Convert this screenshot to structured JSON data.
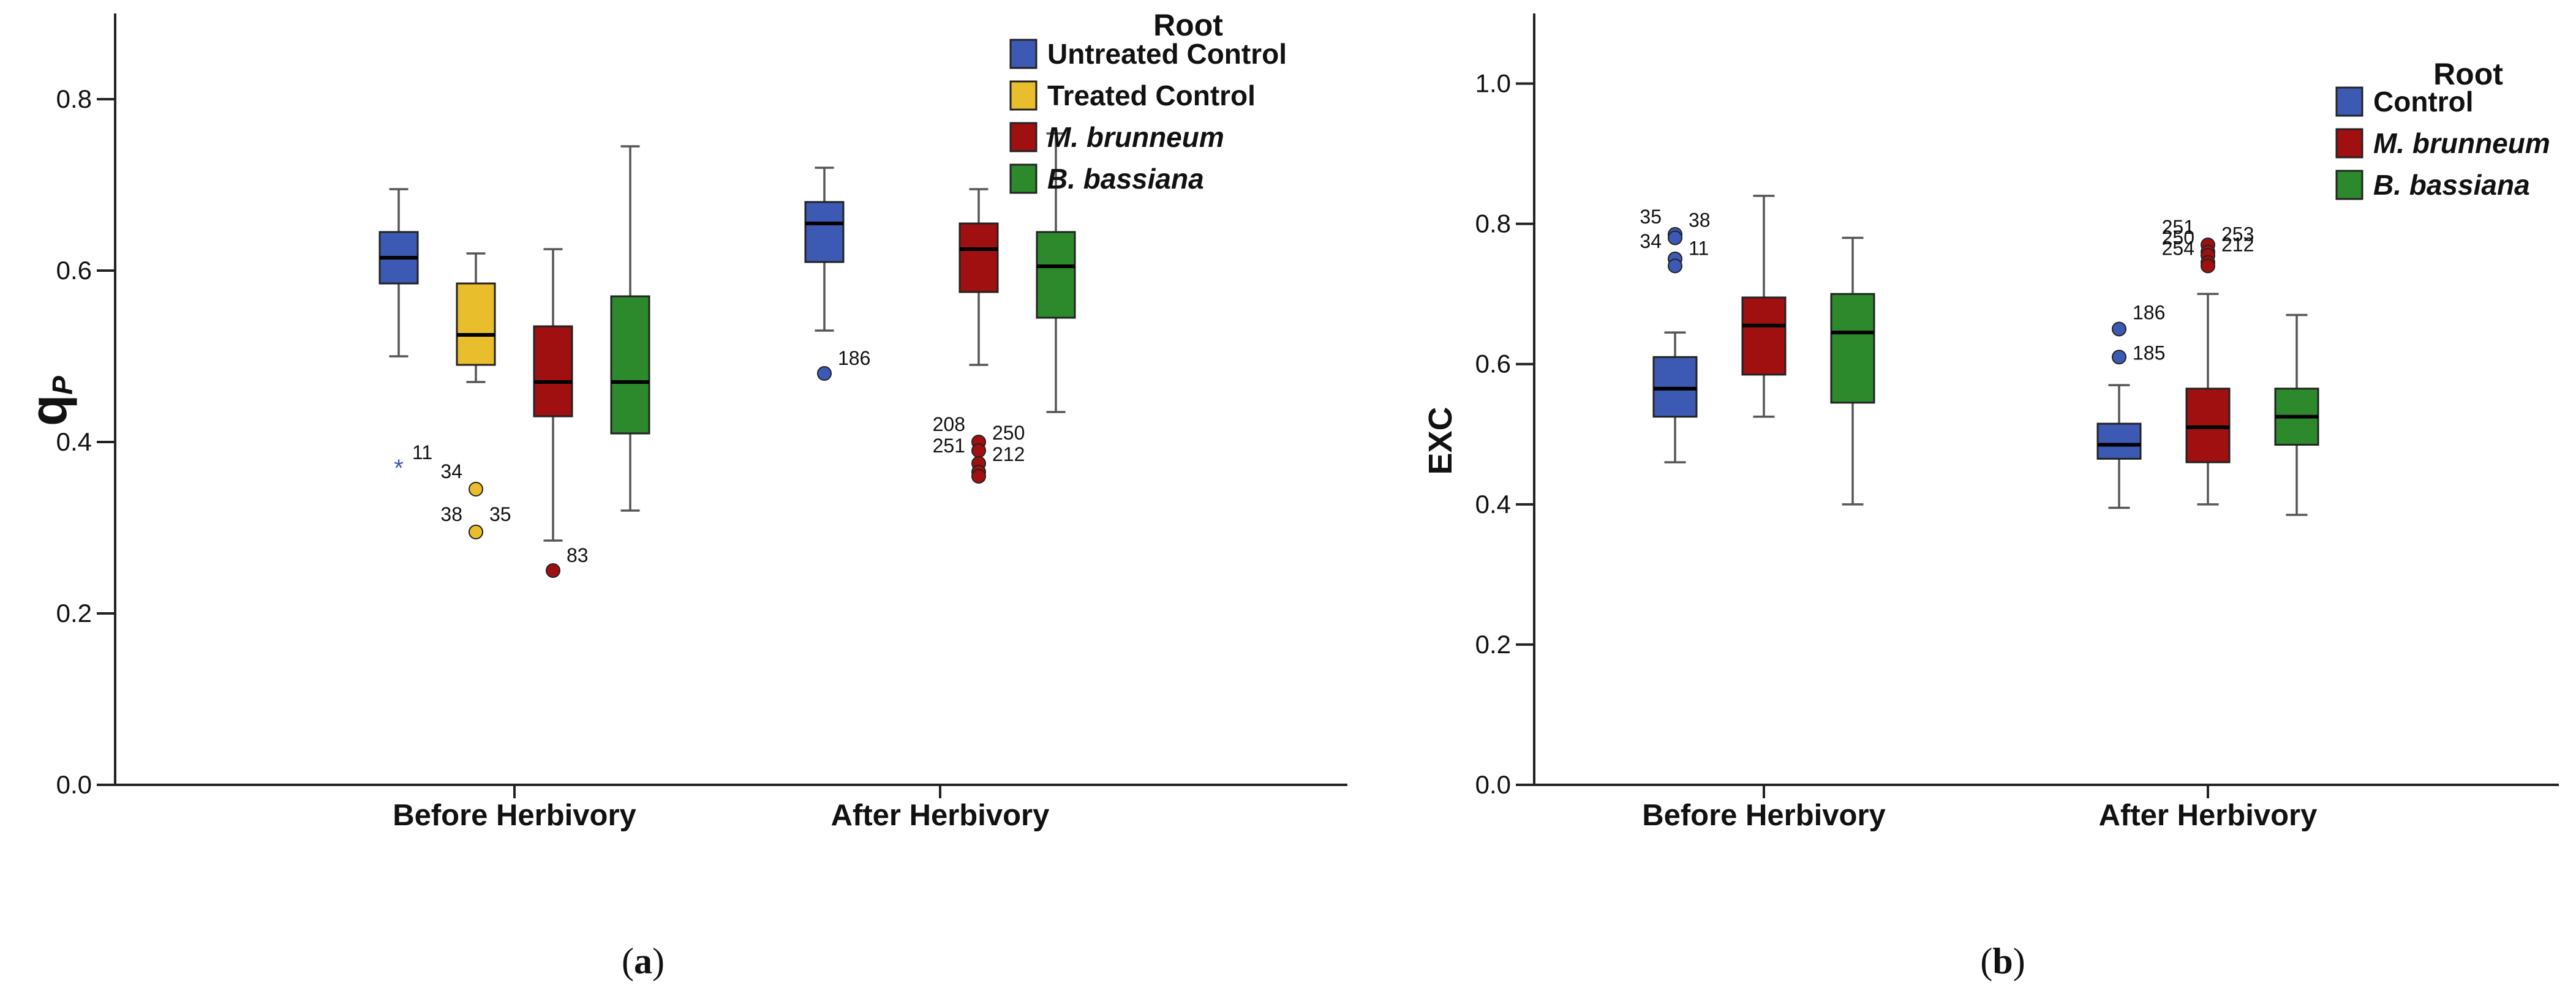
{
  "colors": {
    "untreated_control": "#3c5ab4",
    "treated_control": "#e8be2c",
    "m_brunneum": "#a01010",
    "b_bassiana": "#2c8a2c",
    "axis": "#222222",
    "whisker": "#555555"
  },
  "chart_data": [
    {
      "type": "box",
      "panel_label": "(a)",
      "panel_letter": "a",
      "title": "",
      "xlabel": "",
      "ylabel": "qP",
      "ylabel_main": "q",
      "ylabel_sub": "P",
      "ylim": [
        0,
        0.9
      ],
      "yticks": [
        0.0,
        0.2,
        0.4,
        0.6,
        0.8
      ],
      "ytick_labels": [
        "0.0",
        "0.2",
        "0.4",
        "0.6",
        "0.8"
      ],
      "categories": [
        "Before Herbivory",
        "After Herbivory"
      ],
      "legend_title": "Root",
      "legend_position": "top-right",
      "series": [
        {
          "name": "Untreated Control",
          "italic": false,
          "color_key": "untreated_control",
          "boxes": [
            {
              "category": "Before Herbivory",
              "whisker_low": 0.5,
              "q1": 0.585,
              "median": 0.615,
              "q3": 0.645,
              "whisker_high": 0.695,
              "outliers": [
                {
                  "value": 0.37,
                  "label": "11",
                  "marker": "star"
                }
              ]
            },
            {
              "category": "After Herbivory",
              "whisker_low": 0.53,
              "q1": 0.61,
              "median": 0.655,
              "q3": 0.68,
              "whisker_high": 0.72,
              "outliers": [
                {
                  "value": 0.48,
                  "label": "186",
                  "marker": "circle"
                }
              ]
            }
          ]
        },
        {
          "name": "Treated Control",
          "italic": false,
          "color_key": "treated_control",
          "boxes": [
            {
              "category": "Before Herbivory",
              "whisker_low": 0.47,
              "q1": 0.49,
              "median": 0.525,
              "q3": 0.585,
              "whisker_high": 0.62,
              "outliers": [
                {
                  "value": 0.345,
                  "label": "34",
                  "marker": "circle"
                },
                {
                  "value": 0.295,
                  "label": "35",
                  "marker": "circle"
                },
                {
                  "value": 0.295,
                  "label": "38",
                  "marker": "circle"
                }
              ]
            }
          ]
        },
        {
          "name": "M. brunneum",
          "italic": true,
          "color_key": "m_brunneum",
          "boxes": [
            {
              "category": "Before Herbivory",
              "whisker_low": 0.285,
              "q1": 0.43,
              "median": 0.47,
              "q3": 0.535,
              "whisker_high": 0.625,
              "outliers": [
                {
                  "value": 0.25,
                  "label": "83",
                  "marker": "circle"
                }
              ]
            },
            {
              "category": "After Herbivory",
              "whisker_low": 0.49,
              "q1": 0.575,
              "median": 0.625,
              "q3": 0.655,
              "whisker_high": 0.695,
              "outliers": [
                {
                  "value": 0.4,
                  "label": "208",
                  "marker": "circle"
                },
                {
                  "value": 0.39,
                  "label": "250",
                  "marker": "circle"
                },
                {
                  "value": 0.375,
                  "label": "251",
                  "marker": "circle"
                },
                {
                  "value": 0.365,
                  "label": "212",
                  "marker": "circle"
                },
                {
                  "value": 0.36,
                  "label": "",
                  "marker": "circle"
                }
              ]
            }
          ]
        },
        {
          "name": "B. bassiana",
          "italic": true,
          "color_key": "b_bassiana",
          "boxes": [
            {
              "category": "Before Herbivory",
              "whisker_low": 0.32,
              "q1": 0.41,
              "median": 0.47,
              "q3": 0.57,
              "whisker_high": 0.745,
              "outliers": []
            },
            {
              "category": "After Herbivory",
              "whisker_low": 0.435,
              "q1": 0.545,
              "median": 0.605,
              "q3": 0.645,
              "whisker_high": 0.76,
              "outliers": []
            }
          ]
        }
      ]
    },
    {
      "type": "box",
      "panel_label": "(b)",
      "panel_letter": "b",
      "title": "",
      "xlabel": "",
      "ylabel": "EXC",
      "ylim": [
        0,
        1.1
      ],
      "yticks": [
        0.0,
        0.2,
        0.4,
        0.6,
        0.8,
        1.0
      ],
      "ytick_labels": [
        "0.0",
        "0.2",
        "0.4",
        "0.6",
        "0.8",
        "1.0"
      ],
      "categories": [
        "Before Herbivory",
        "After Herbivory"
      ],
      "legend_title": "Root",
      "legend_position": "top-right",
      "series": [
        {
          "name": "Control",
          "italic": false,
          "color_key": "untreated_control",
          "boxes": [
            {
              "category": "Before Herbivory",
              "whisker_low": 0.46,
              "q1": 0.525,
              "median": 0.565,
              "q3": 0.61,
              "whisker_high": 0.645,
              "outliers": [
                {
                  "value": 0.785,
                  "label": "35",
                  "marker": "circle"
                },
                {
                  "value": 0.78,
                  "label": "38",
                  "marker": "circle"
                },
                {
                  "value": 0.75,
                  "label": "34",
                  "marker": "circle"
                },
                {
                  "value": 0.74,
                  "label": "11",
                  "marker": "circle"
                }
              ]
            },
            {
              "category": "After Herbivory",
              "whisker_low": 0.395,
              "q1": 0.465,
              "median": 0.485,
              "q3": 0.515,
              "whisker_high": 0.57,
              "outliers": [
                {
                  "value": 0.65,
                  "label": "186",
                  "marker": "circle"
                },
                {
                  "value": 0.61,
                  "label": "185",
                  "marker": "circle"
                }
              ]
            }
          ]
        },
        {
          "name": "M. brunneum",
          "italic": true,
          "color_key": "m_brunneum",
          "boxes": [
            {
              "category": "Before Herbivory",
              "whisker_low": 0.525,
              "q1": 0.585,
              "median": 0.655,
              "q3": 0.695,
              "whisker_high": 0.84,
              "outliers": []
            },
            {
              "category": "After Herbivory",
              "whisker_low": 0.4,
              "q1": 0.46,
              "median": 0.51,
              "q3": 0.565,
              "whisker_high": 0.7,
              "outliers": [
                {
                  "value": 0.77,
                  "label": "251",
                  "marker": "circle"
                },
                {
                  "value": 0.76,
                  "label": "253",
                  "marker": "circle"
                },
                {
                  "value": 0.755,
                  "label": "250",
                  "marker": "circle"
                },
                {
                  "value": 0.745,
                  "label": "212",
                  "marker": "circle"
                },
                {
                  "value": 0.74,
                  "label": "254",
                  "marker": "circle"
                }
              ]
            }
          ]
        },
        {
          "name": "B. bassiana",
          "italic": true,
          "color_key": "b_bassiana",
          "boxes": [
            {
              "category": "Before Herbivory",
              "whisker_low": 0.4,
              "q1": 0.545,
              "median": 0.645,
              "q3": 0.7,
              "whisker_high": 0.78,
              "outliers": []
            },
            {
              "category": "After Herbivory",
              "whisker_low": 0.385,
              "q1": 0.485,
              "median": 0.525,
              "q3": 0.565,
              "whisker_high": 0.67,
              "outliers": []
            }
          ]
        }
      ]
    }
  ]
}
